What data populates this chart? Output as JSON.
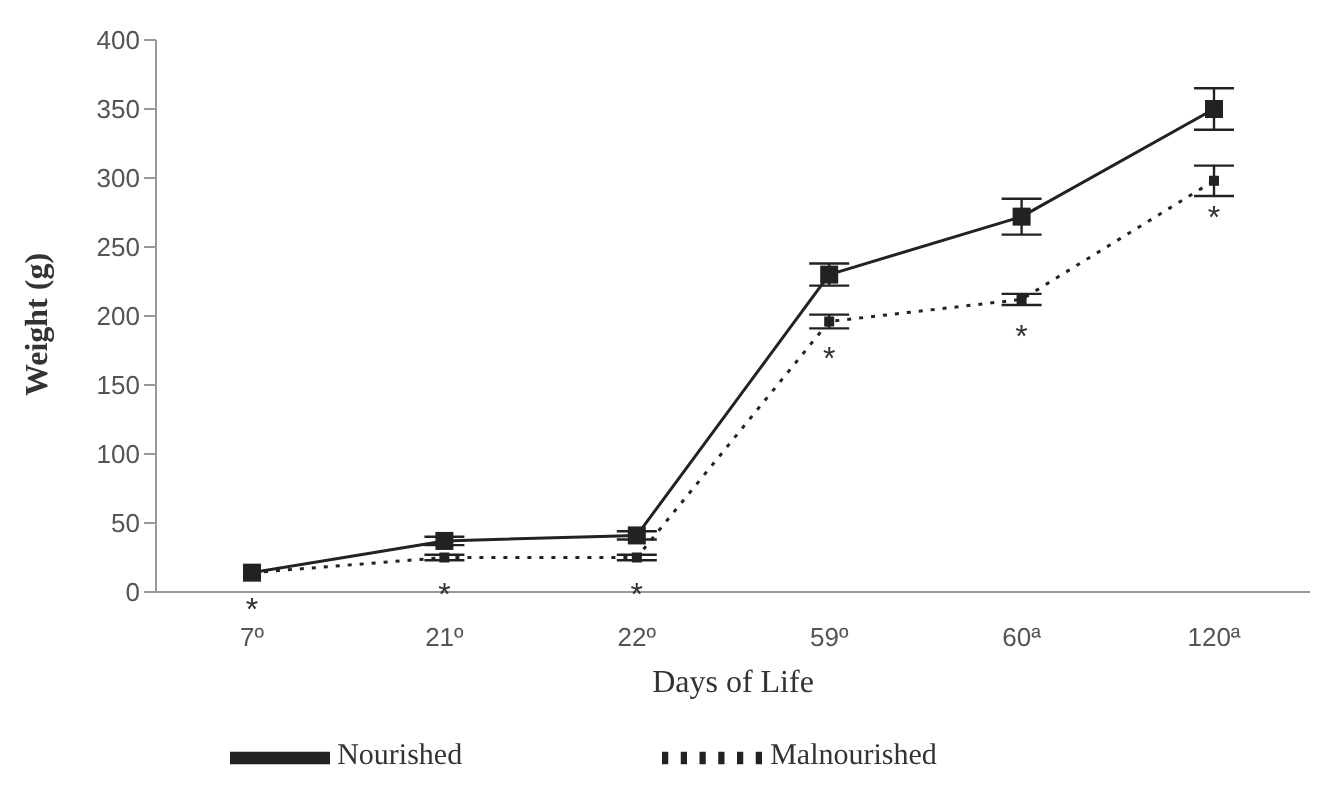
{
  "chart_data": {
    "type": "line",
    "xlabel": "Days of Life",
    "ylabel": "Weight (g)",
    "categories": [
      "7º",
      "21º",
      "22º",
      "59º",
      "60ª",
      "120ª"
    ],
    "series": [
      {
        "name": "Nourished",
        "color": "#222222",
        "line_style": "solid",
        "values": [
          14,
          37,
          41,
          230,
          272,
          350
        ],
        "errors": [
          null,
          3,
          3,
          8,
          13,
          15
        ]
      },
      {
        "name": "Malnourished",
        "color": "#222222",
        "line_style": "dotted",
        "values": [
          14,
          25,
          25,
          196,
          212,
          298
        ],
        "errors": [
          null,
          2,
          2,
          5,
          4,
          11
        ]
      }
    ],
    "ylim": [
      0,
      400
    ],
    "yticks": [
      0,
      50,
      100,
      150,
      200,
      250,
      300,
      350,
      400
    ],
    "grid": false,
    "legend": "bottom",
    "marker": "square",
    "annotations": [
      {
        "text": "*",
        "x": "7º",
        "y": 14
      },
      {
        "text": "*",
        "x": "21º",
        "y": 25
      },
      {
        "text": "*",
        "x": "22º",
        "y": 25
      },
      {
        "text": "*",
        "x": "59º",
        "y": 196
      },
      {
        "text": "*",
        "x": "60ª",
        "y": 212
      },
      {
        "text": "*",
        "x": "120ª",
        "y": 298
      }
    ]
  }
}
